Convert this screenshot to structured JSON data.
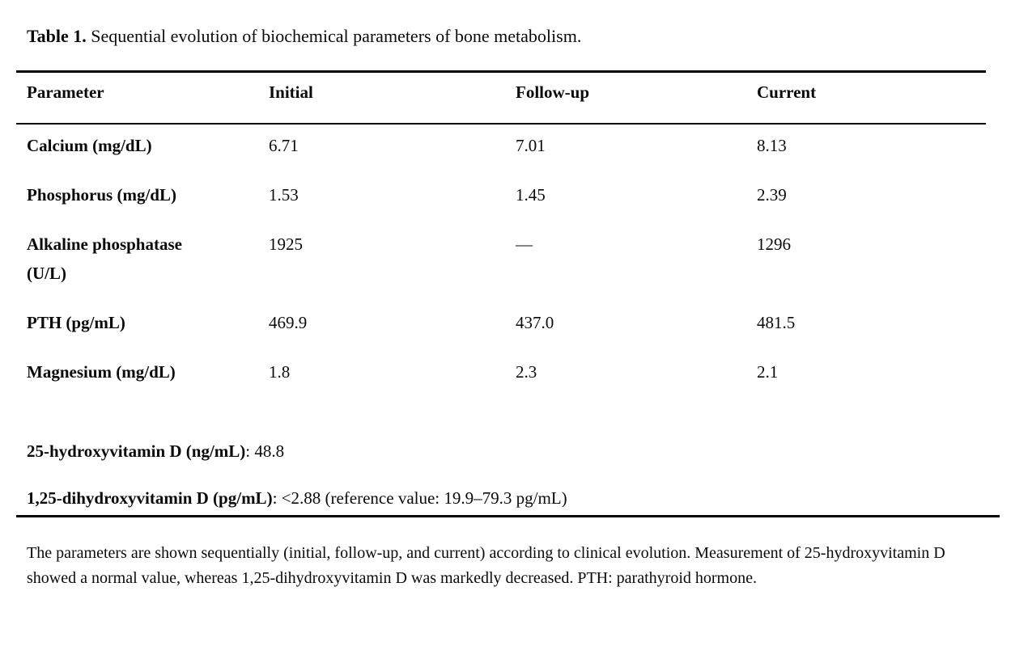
{
  "page": {
    "caption": {
      "label": "Table 1.",
      "text": " Sequential evolution of biochemical parameters of bone metabolism."
    },
    "table": {
      "columns": [
        "Parameter",
        "Initial",
        "Follow-up",
        "Current"
      ],
      "rows": [
        {
          "parameter": "Calcium (mg/dL)",
          "initial": "6.71",
          "follow_up": "7.01",
          "current": "8.13"
        },
        {
          "parameter": "Phosphorus (mg/dL)",
          "initial": "1.53",
          "follow_up": "1.45",
          "current": "2.39"
        },
        {
          "parameter": "Alkaline phosphatase (U/L)",
          "initial": "1925",
          "follow_up": "—",
          "current": "1296"
        },
        {
          "parameter": "PTH (pg/mL)",
          "initial": "469.9",
          "follow_up": "437.0",
          "current": "481.5"
        },
        {
          "parameter": "Magnesium (mg/dL)",
          "initial": "1.8",
          "follow_up": "2.3",
          "current": "2.1"
        }
      ]
    },
    "supplementary": [
      {
        "label": "25-hydroxyvitamin D (ng/mL)",
        "value": ": 48.8"
      },
      {
        "label": "1,25-dihydroxyvitamin D (pg/mL)",
        "value": ": <2.88 (reference value: 19.9–79.3 pg/mL)"
      }
    ],
    "footnote": "The parameters are shown sequentially (initial, follow-up, and current) according to clinical evolution. Measurement of 25-hydroxyvitamin D showed a normal value, whereas 1,25-dihydroxyvitamin D was markedly decreased. PTH: parathyroid hormone."
  }
}
